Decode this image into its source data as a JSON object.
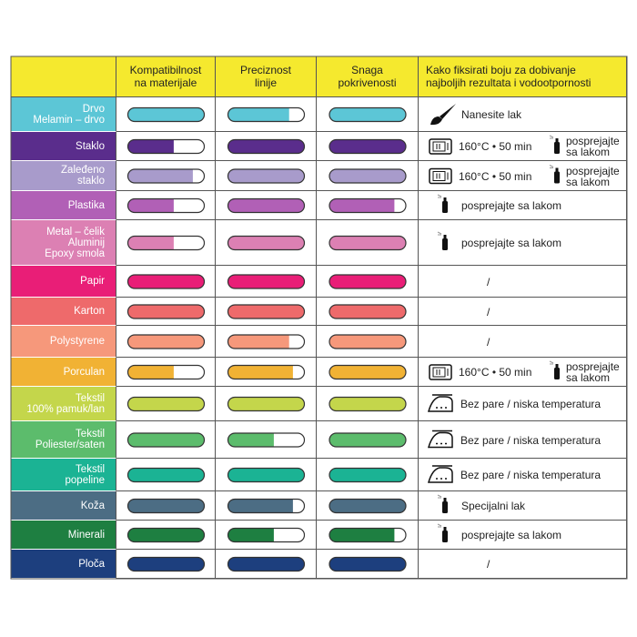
{
  "header": {
    "columns": [
      "Kompatibilnost\nna materijale",
      "Preciznost\nlinije",
      "Snaga\npokrivenosti",
      "Kako fiksirati boju za dobivanje\nnajboljih rezultata i vodootpornosti"
    ]
  },
  "rows": [
    {
      "label": "Drvo\nMelamin – drvo",
      "color": "#5cc6d6",
      "ratings": [
        100,
        80,
        100
      ],
      "fix": {
        "icon": "brush",
        "text": "Nanesite lak"
      }
    },
    {
      "label": "Staklo",
      "color": "#5a2d8c",
      "ratings": [
        60,
        100,
        100
      ],
      "fix": {
        "icon": "oven",
        "text": "160°C • 50 min",
        "spray_text": "posprejajte\nsa lakom"
      }
    },
    {
      "label": "Zaleđeno\nstaklo",
      "color": "#a89bcb",
      "ratings": [
        85,
        100,
        100
      ],
      "fix": {
        "icon": "oven",
        "text": "160°C • 50 min",
        "spray_text": "posprejajte\nsa lakom"
      }
    },
    {
      "label": "Plastika",
      "color": "#b160b6",
      "ratings": [
        60,
        100,
        85
      ],
      "fix": {
        "icon": "spray",
        "text": "posprejajte sa lakom"
      }
    },
    {
      "label": "Metal – čelik\nAluminij\nEpoxy smola",
      "color": "#dc80b3",
      "ratings": [
        60,
        100,
        100
      ],
      "fix": {
        "icon": "spray",
        "text": "posprejajte sa lakom"
      }
    },
    {
      "label": "Papir",
      "color": "#e91e77",
      "ratings": [
        100,
        100,
        100
      ],
      "fix": {
        "icon": "none",
        "text": "/"
      }
    },
    {
      "label": "Karton",
      "color": "#ee6a6b",
      "ratings": [
        100,
        100,
        100
      ],
      "fix": {
        "icon": "none",
        "text": "/"
      }
    },
    {
      "label": "Polystyrene",
      "color": "#f6987b",
      "ratings": [
        100,
        80,
        100
      ],
      "fix": {
        "icon": "none",
        "text": "/"
      }
    },
    {
      "label": "Porculan",
      "color": "#f1b234",
      "ratings": [
        60,
        85,
        100
      ],
      "fix": {
        "icon": "oven",
        "text": "160°C • 50 min",
        "spray_text": "posprejajte\nsa lakom"
      }
    },
    {
      "label": "Tekstil\n100% pamuk/lan",
      "color": "#c4d64b",
      "ratings": [
        100,
        100,
        100
      ],
      "fix": {
        "icon": "iron",
        "text": "Bez pare / niska temperatura"
      }
    },
    {
      "label": "Tekstil\nPoliester/saten",
      "color": "#5cbc6c",
      "ratings": [
        100,
        60,
        100
      ],
      "fix": {
        "icon": "iron",
        "text": "Bez pare / niska temperatura"
      }
    },
    {
      "label": "Tekstil\npopeline",
      "color": "#1bb394",
      "ratings": [
        100,
        100,
        100
      ],
      "fix": {
        "icon": "iron",
        "text": "Bez pare / niska temperatura"
      }
    },
    {
      "label": "Koža",
      "color": "#4c6d84",
      "ratings": [
        100,
        85,
        100
      ],
      "fix": {
        "icon": "spray",
        "text": "Specijalni lak"
      }
    },
    {
      "label": "Minerali",
      "color": "#1e7f41",
      "ratings": [
        100,
        60,
        85
      ],
      "fix": {
        "icon": "spray",
        "text": "posprejajte sa lakom"
      }
    },
    {
      "label": "Ploča",
      "color": "#1d3f7e",
      "ratings": [
        100,
        100,
        100
      ],
      "fix": {
        "icon": "none",
        "text": "/"
      }
    }
  ]
}
